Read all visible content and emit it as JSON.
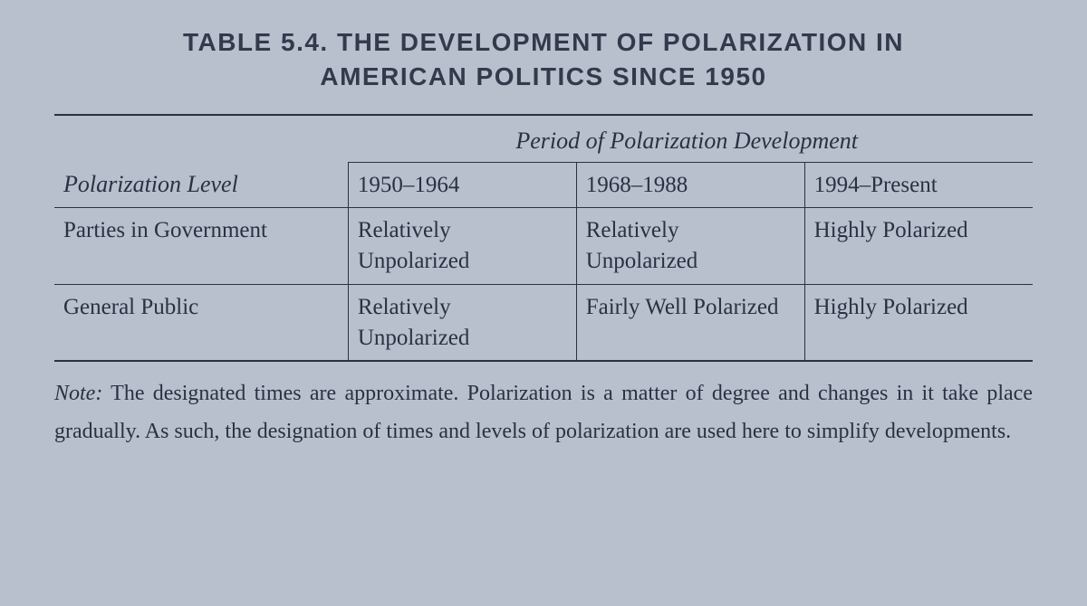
{
  "title": "TABLE 5.4. THE DEVELOPMENT OF POLARIZATION IN AMERICAN POLITICS SINCE 1950",
  "table": {
    "row_header_title": "Polarization Level",
    "super_header": "Period of Polarization Development",
    "periods": [
      "1950–1964",
      "1968–1988",
      "1994–Present"
    ],
    "rows": [
      {
        "label": "Parties in Government",
        "cells": [
          "Relatively Unpolarized",
          "Relatively Unpolarized",
          "Highly Polarized"
        ]
      },
      {
        "label": "General Public",
        "cells": [
          "Relatively Unpolarized",
          "Fairly Well Polarized",
          "Highly Polarized"
        ]
      }
    ]
  },
  "note_label": "Note:",
  "note_text": "The designated times are approximate. Polarization is a matter of degree and changes in it take place gradually. As such, the designation of times and levels of polarization are used here to simplify developments.",
  "colors": {
    "background": "#b8c0ce",
    "text": "#2a3142",
    "rule": "#2a3142"
  }
}
